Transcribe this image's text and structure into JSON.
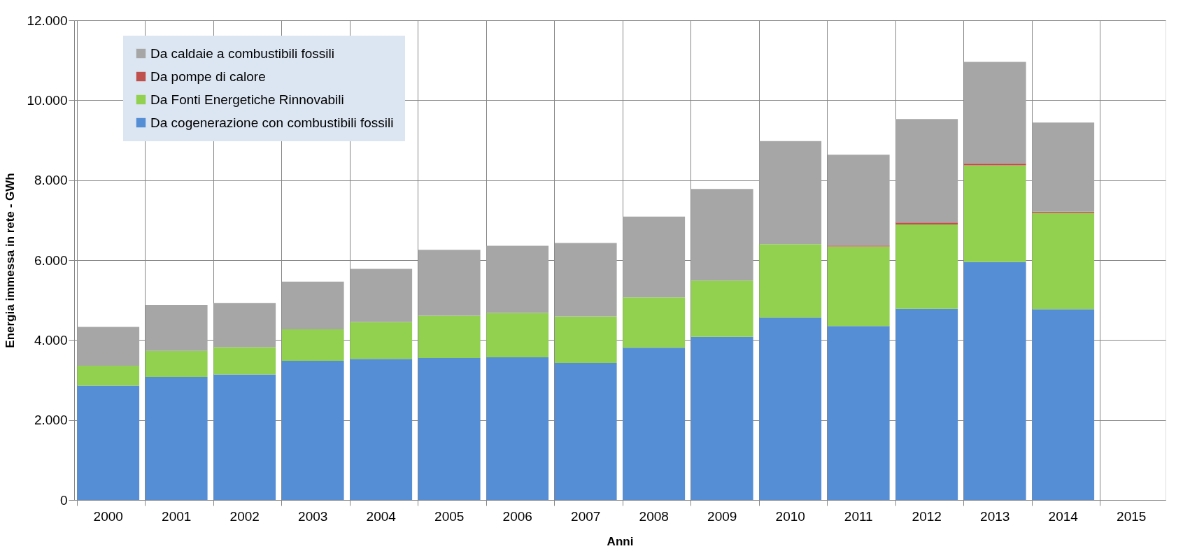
{
  "chart_data": {
    "type": "bar",
    "stacked": true,
    "xlabel": "Anni",
    "ylabel": "Energia immessa in rete - GWh",
    "categories": [
      "2000",
      "2001",
      "2002",
      "2003",
      "2004",
      "2005",
      "2006",
      "2007",
      "2008",
      "2009",
      "2010",
      "2011",
      "2012",
      "2013",
      "2014",
      "2015"
    ],
    "series": [
      {
        "name": "Da cogenerazione con combustibili fossili",
        "color": "#558ed5",
        "values": [
          2860,
          3080,
          3140,
          3480,
          3530,
          3550,
          3570,
          3430,
          3810,
          4080,
          4560,
          4350,
          4780,
          5950,
          4770,
          null
        ]
      },
      {
        "name": "Da Fonti Energetiche Rinnovabili",
        "color": "#92d050",
        "values": [
          500,
          650,
          680,
          790,
          920,
          1060,
          1110,
          1160,
          1260,
          1410,
          1840,
          1990,
          2110,
          2420,
          2410,
          null
        ]
      },
      {
        "name": "Da pompe di calore",
        "color": "#c0504d",
        "values": [
          0,
          0,
          0,
          0,
          0,
          0,
          0,
          0,
          0,
          0,
          0,
          25,
          50,
          50,
          30,
          null
        ]
      },
      {
        "name": "Da caldaie a combustibili fossili",
        "color": "#a6a6a6",
        "values": [
          970,
          1150,
          1110,
          1190,
          1330,
          1650,
          1680,
          1840,
          2020,
          2290,
          2580,
          2270,
          2590,
          2540,
          2230,
          null
        ]
      }
    ],
    "ylim": [
      0,
      12000
    ],
    "yticks": [
      0,
      {
        "value": 2000,
        "label": "2.000"
      },
      {
        "value": 4000,
        "label": "4.000"
      },
      {
        "value": 6000,
        "label": "6.000"
      },
      {
        "value": 8000,
        "label": "8.000"
      },
      {
        "value": 10000,
        "label": "10.000"
      },
      {
        "value": 12000,
        "label": "12.000"
      }
    ],
    "grid": true,
    "legend": "top left"
  }
}
